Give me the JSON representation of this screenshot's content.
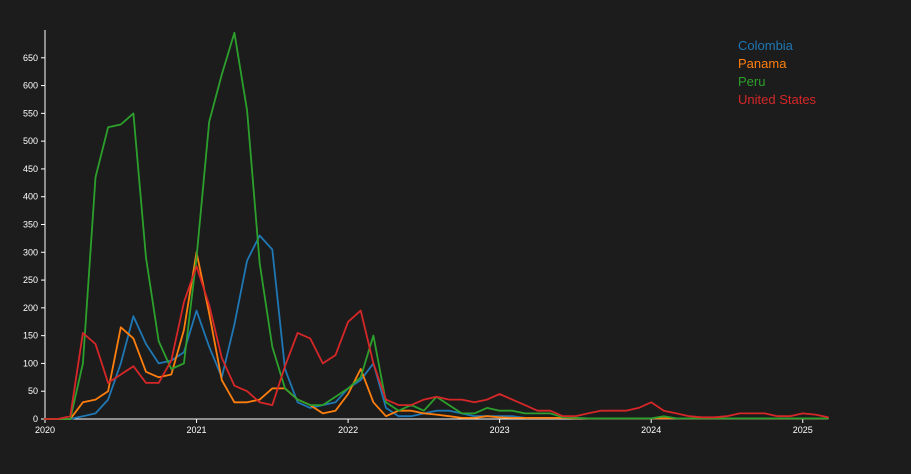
{
  "chart_data": {
    "type": "line",
    "title": "",
    "xlabel": "",
    "ylabel": "",
    "xlim": [
      "2020-01",
      "2025-03"
    ],
    "ylim": [
      0,
      700
    ],
    "x_ticks": [
      "2020",
      "2021",
      "2022",
      "2023",
      "2024",
      "2025"
    ],
    "y_ticks": [
      0,
      50,
      100,
      150,
      200,
      250,
      300,
      350,
      400,
      450,
      500,
      550,
      600,
      650
    ],
    "grid": false,
    "legend_position": "top-right",
    "x": [
      "2020-01",
      "2020-02",
      "2020-03",
      "2020-04",
      "2020-05",
      "2020-06",
      "2020-07",
      "2020-08",
      "2020-09",
      "2020-10",
      "2020-11",
      "2020-12",
      "2021-01",
      "2021-02",
      "2021-03",
      "2021-04",
      "2021-05",
      "2021-06",
      "2021-07",
      "2021-08",
      "2021-09",
      "2021-10",
      "2021-11",
      "2021-12",
      "2022-01",
      "2022-02",
      "2022-03",
      "2022-04",
      "2022-05",
      "2022-06",
      "2022-07",
      "2022-08",
      "2022-09",
      "2022-10",
      "2022-11",
      "2022-12",
      "2023-01",
      "2023-02",
      "2023-03",
      "2023-04",
      "2023-05",
      "2023-06",
      "2023-07",
      "2023-08",
      "2023-09",
      "2023-10",
      "2023-11",
      "2023-12",
      "2024-01",
      "2024-02",
      "2024-03",
      "2024-04",
      "2024-05",
      "2024-06",
      "2024-07",
      "2024-08",
      "2024-09",
      "2024-10",
      "2024-11",
      "2024-12",
      "2025-01",
      "2025-02",
      "2025-03"
    ],
    "series": [
      {
        "name": "Colombia",
        "color": "#1f77b4",
        "values": [
          0,
          0,
          0,
          5,
          10,
          35,
          100,
          185,
          135,
          100,
          105,
          120,
          195,
          130,
          75,
          170,
          285,
          330,
          305,
          90,
          30,
          20,
          25,
          30,
          55,
          70,
          100,
          20,
          5,
          5,
          10,
          15,
          15,
          10,
          5,
          5,
          5,
          5,
          2,
          2,
          2,
          2,
          2,
          1,
          1,
          1,
          1,
          1,
          1,
          1,
          1,
          1,
          1,
          1,
          1,
          1,
          1,
          1,
          1,
          1,
          1,
          1,
          1
        ]
      },
      {
        "name": "Panama",
        "color": "#ff7f0e",
        "values": [
          0,
          0,
          0,
          30,
          35,
          50,
          165,
          145,
          85,
          75,
          80,
          160,
          300,
          190,
          70,
          30,
          30,
          35,
          55,
          55,
          35,
          25,
          10,
          15,
          45,
          90,
          30,
          5,
          15,
          15,
          10,
          8,
          5,
          2,
          2,
          5,
          3,
          2,
          2,
          2,
          2,
          2,
          1,
          1,
          1,
          1,
          1,
          1,
          1,
          1,
          1,
          1,
          1,
          1,
          1,
          1,
          1,
          1,
          1,
          1,
          1,
          1,
          1
        ]
      },
      {
        "name": "Peru",
        "color": "#2ca02c",
        "values": [
          0,
          0,
          0,
          100,
          435,
          525,
          530,
          550,
          290,
          140,
          90,
          100,
          290,
          535,
          620,
          695,
          555,
          280,
          130,
          55,
          35,
          25,
          25,
          40,
          55,
          75,
          150,
          30,
          15,
          25,
          15,
          40,
          25,
          10,
          10,
          20,
          15,
          15,
          10,
          10,
          10,
          3,
          2,
          1,
          1,
          1,
          1,
          1,
          1,
          5,
          1,
          1,
          1,
          1,
          1,
          1,
          1,
          1,
          1,
          1,
          1,
          1,
          1
        ]
      },
      {
        "name": "United States",
        "color": "#d62728",
        "values": [
          0,
          0,
          5,
          155,
          135,
          65,
          80,
          95,
          65,
          65,
          105,
          210,
          275,
          205,
          110,
          60,
          50,
          30,
          25,
          95,
          155,
          145,
          100,
          115,
          175,
          195,
          100,
          35,
          25,
          25,
          35,
          40,
          35,
          35,
          30,
          35,
          45,
          35,
          25,
          15,
          15,
          5,
          5,
          10,
          15,
          15,
          15,
          20,
          30,
          15,
          10,
          5,
          3,
          3,
          5,
          10,
          10,
          10,
          5,
          5,
          10,
          8,
          3
        ]
      }
    ]
  }
}
